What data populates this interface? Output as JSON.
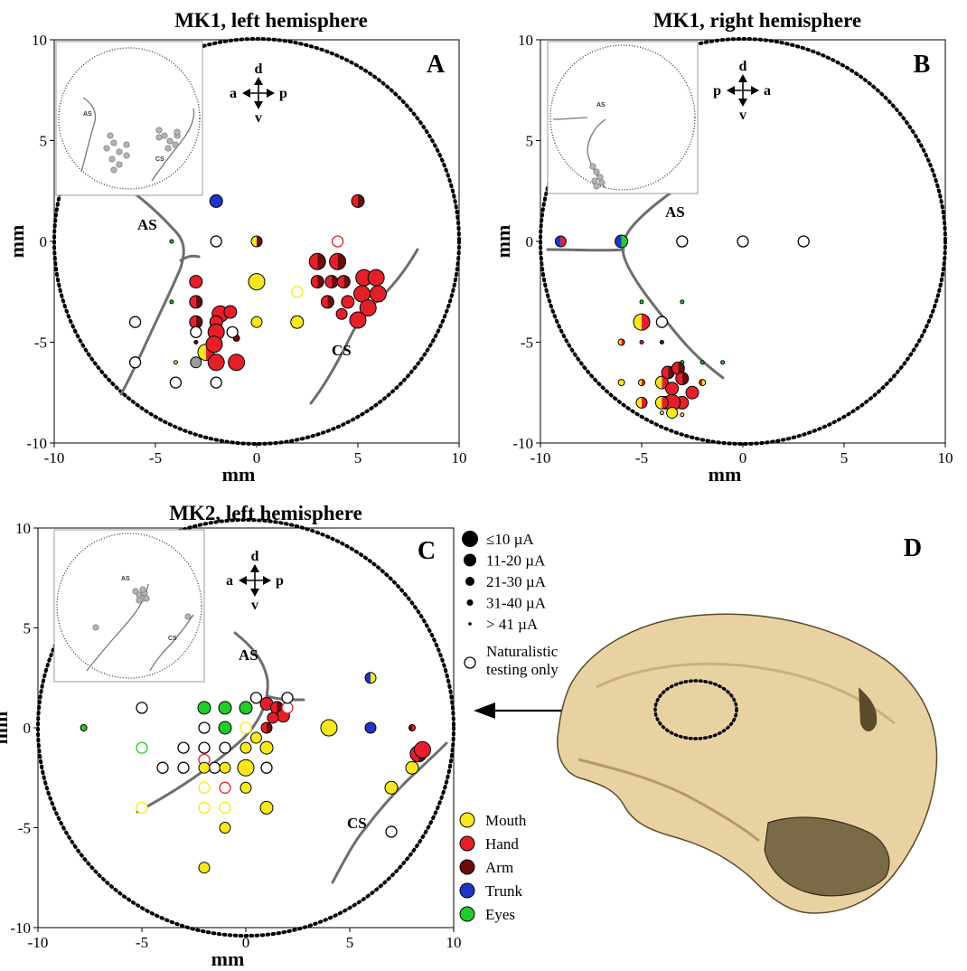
{
  "colors": {
    "mouth": "#f7e81c",
    "hand": "#e3202a",
    "arm": "#6b0d0d",
    "trunk": "#1f35c8",
    "eyes": "#22cc2a",
    "inset_dot": "#b4b4b4",
    "sulcus": "#6e6e6e",
    "skull": "#e9d2a2"
  },
  "panel_d": {
    "letter": "D"
  },
  "legend": {
    "sizes": [
      {
        "label": "≤10 µA",
        "radius": 9
      },
      {
        "label": "11-20 µA",
        "radius": 7
      },
      {
        "label": "21-30 µA",
        "radius": 5
      },
      {
        "label": "31-40 µA",
        "radius": 3.5
      },
      {
        "label": "> 41 µA",
        "radius": 1.8
      }
    ],
    "naturalistic": [
      "Naturalistic",
      "testing only"
    ],
    "categories": [
      {
        "label": "Mouth",
        "color": "#f7e81c"
      },
      {
        "label": "Hand",
        "color": "#e3202a"
      },
      {
        "label": "Arm",
        "color": "#6b0d0d"
      },
      {
        "label": "Trunk",
        "color": "#1f35c8"
      },
      {
        "label": "Eyes",
        "color": "#22cc2a"
      }
    ]
  },
  "chart_data": [
    {
      "type": "scatter",
      "panel": "A",
      "title": "MK1, left hemisphere",
      "xlabel": "mm",
      "ylabel": "mm",
      "xlim": [
        -10,
        10
      ],
      "ylim": [
        -10,
        10
      ],
      "xticks": [
        -10,
        -5,
        0,
        5,
        10
      ],
      "yticks": [
        -10,
        -5,
        0,
        5,
        10
      ],
      "orientation": {
        "up": "d",
        "down": "v",
        "left": "a",
        "right": "p"
      },
      "sulcus_labels": [
        "AS",
        "CS"
      ],
      "inset_labels": [
        "AS",
        "CS"
      ],
      "points": [
        {
          "x": -2,
          "y": 2,
          "c": [
            "trunk"
          ],
          "s": 2
        },
        {
          "x": -4.2,
          "y": 0,
          "c": [
            "eyes"
          ],
          "s": 5
        },
        {
          "x": -2,
          "y": 0,
          "c": [
            "none"
          ],
          "s": 3
        },
        {
          "x": 0,
          "y": 0,
          "c": [
            "mouth",
            "arm"
          ],
          "s": 3
        },
        {
          "x": 5,
          "y": 2,
          "c": [
            "hand",
            "arm"
          ],
          "s": 2
        },
        {
          "x": 4,
          "y": 0,
          "c": [
            "none_hand"
          ],
          "s": 3
        },
        {
          "x": 3,
          "y": -1,
          "c": [
            "hand",
            "arm"
          ],
          "s": 1
        },
        {
          "x": 4,
          "y": -1,
          "c": [
            "hand",
            "arm"
          ],
          "s": 1
        },
        {
          "x": 3,
          "y": -2,
          "c": [
            "hand",
            "arm"
          ],
          "s": 2
        },
        {
          "x": 3.7,
          "y": -2,
          "c": [
            "hand",
            "arm"
          ],
          "s": 2
        },
        {
          "x": 4.3,
          "y": -2,
          "c": [
            "hand",
            "arm"
          ],
          "s": 2
        },
        {
          "x": 3.5,
          "y": -3,
          "c": [
            "hand",
            "arm"
          ],
          "s": 2
        },
        {
          "x": 4.5,
          "y": -3,
          "c": [
            "hand"
          ],
          "s": 2
        },
        {
          "x": 5.3,
          "y": -1.8,
          "c": [
            "hand"
          ],
          "s": 1
        },
        {
          "x": 5.9,
          "y": -1.8,
          "c": [
            "hand"
          ],
          "s": 1
        },
        {
          "x": 5.2,
          "y": -2.6,
          "c": [
            "hand"
          ],
          "s": 1
        },
        {
          "x": 6,
          "y": -2.6,
          "c": [
            "hand"
          ],
          "s": 1
        },
        {
          "x": 5.5,
          "y": -3.3,
          "c": [
            "hand"
          ],
          "s": 1
        },
        {
          "x": 4.2,
          "y": -3.6,
          "c": [
            "hand"
          ],
          "s": 3
        },
        {
          "x": 5,
          "y": -3.9,
          "c": [
            "hand"
          ],
          "s": 1
        },
        {
          "x": 0,
          "y": -2,
          "c": [
            "mouth"
          ],
          "s": 1
        },
        {
          "x": 2,
          "y": -2.5,
          "c": [
            "none_mouth"
          ],
          "s": 3
        },
        {
          "x": 2,
          "y": -4,
          "c": [
            "mouth"
          ],
          "s": 2
        },
        {
          "x": 0,
          "y": -4,
          "c": [
            "mouth"
          ],
          "s": 3
        },
        {
          "x": -3,
          "y": -2,
          "c": [
            "hand"
          ],
          "s": 2
        },
        {
          "x": -3,
          "y": -3,
          "c": [
            "hand",
            "arm"
          ],
          "s": 2
        },
        {
          "x": -4.2,
          "y": -3,
          "c": [
            "eyes"
          ],
          "s": 5
        },
        {
          "x": -3,
          "y": -4,
          "c": [
            "hand",
            "arm"
          ],
          "s": 2
        },
        {
          "x": -1.8,
          "y": -3.6,
          "c": [
            "hand"
          ],
          "s": 1
        },
        {
          "x": -1.3,
          "y": -3.5,
          "c": [
            "hand"
          ],
          "s": 2
        },
        {
          "x": -2,
          "y": -4,
          "c": [
            "hand"
          ],
          "s": 2
        },
        {
          "x": -2,
          "y": -4.5,
          "c": [
            "hand"
          ],
          "s": 1
        },
        {
          "x": -1,
          "y": -4.8,
          "c": [
            "arm"
          ],
          "s": 4
        },
        {
          "x": -1.2,
          "y": -4.5,
          "c": [
            "none"
          ],
          "s": 3
        },
        {
          "x": -3,
          "y": -4.5,
          "c": [
            "none"
          ],
          "s": 3
        },
        {
          "x": -2.5,
          "y": -5.5,
          "c": [
            "mouth",
            "hand"
          ],
          "s": 1
        },
        {
          "x": -2.1,
          "y": -5.1,
          "c": [
            "hand"
          ],
          "s": 1
        },
        {
          "x": -2,
          "y": -6,
          "c": [
            "hand"
          ],
          "s": 1
        },
        {
          "x": -1,
          "y": -6,
          "c": [
            "hand"
          ],
          "s": 1
        },
        {
          "x": -3,
          "y": -6,
          "c": [
            "gray"
          ],
          "s": 3
        },
        {
          "x": -3,
          "y": -5,
          "c": [
            "arm"
          ],
          "s": 5
        },
        {
          "x": -4,
          "y": -6,
          "c": [
            "mouth"
          ],
          "s": 5
        },
        {
          "x": -6,
          "y": -4,
          "c": [
            "none"
          ],
          "s": 3
        },
        {
          "x": -6,
          "y": -6,
          "c": [
            "none"
          ],
          "s": 3
        },
        {
          "x": -4,
          "y": -7,
          "c": [
            "none"
          ],
          "s": 3
        },
        {
          "x": -2,
          "y": -7,
          "c": [
            "none"
          ],
          "s": 3
        }
      ]
    },
    {
      "type": "scatter",
      "panel": "B",
      "title": "MK1, right hemisphere",
      "xlabel": "mm",
      "ylabel": "mm",
      "xlim": [
        -10,
        10
      ],
      "ylim": [
        -10,
        10
      ],
      "xticks": [
        -10,
        -5,
        0,
        5,
        10
      ],
      "yticks": [
        -10,
        -5,
        0,
        5,
        10
      ],
      "orientation": {
        "up": "d",
        "down": "v",
        "left": "p",
        "right": "a"
      },
      "sulcus_labels": [
        "AS"
      ],
      "inset_labels": [
        "AS"
      ],
      "points": [
        {
          "x": -9,
          "y": 0,
          "c": [
            "trunk",
            "hand"
          ],
          "s": 3
        },
        {
          "x": -6,
          "y": 0,
          "c": [
            "trunk",
            "eyes"
          ],
          "s": 2
        },
        {
          "x": -3,
          "y": 0,
          "c": [
            "none"
          ],
          "s": 3
        },
        {
          "x": 0,
          "y": 0,
          "c": [
            "none"
          ],
          "s": 3
        },
        {
          "x": 3,
          "y": 0,
          "c": [
            "none"
          ],
          "s": 3
        },
        {
          "x": -5,
          "y": -3,
          "c": [
            "eyes"
          ],
          "s": 5
        },
        {
          "x": -3,
          "y": -3,
          "c": [
            "eyes"
          ],
          "s": 5
        },
        {
          "x": -5,
          "y": -4,
          "c": [
            "mouth",
            "hand"
          ],
          "s": 1
        },
        {
          "x": -4,
          "y": -4,
          "c": [
            "none"
          ],
          "s": 3
        },
        {
          "x": -6,
          "y": -5,
          "c": [
            "mouth",
            "hand"
          ],
          "s": 4
        },
        {
          "x": -5,
          "y": -5,
          "c": [
            "hand"
          ],
          "s": 5
        },
        {
          "x": -4,
          "y": -5,
          "c": [
            "arm"
          ],
          "s": 5
        },
        {
          "x": -3,
          "y": -6,
          "c": [
            "eyes"
          ],
          "s": 5
        },
        {
          "x": -2,
          "y": -6,
          "c": [
            "eyes"
          ],
          "s": 5
        },
        {
          "x": -1,
          "y": -6,
          "c": [
            "eyes"
          ],
          "s": 5
        },
        {
          "x": -6,
          "y": -7,
          "c": [
            "mouth"
          ],
          "s": 4
        },
        {
          "x": -5,
          "y": -7,
          "c": [
            "mouth",
            "hand"
          ],
          "s": 4
        },
        {
          "x": -4,
          "y": -7,
          "c": [
            "mouth",
            "hand"
          ],
          "s": 2
        },
        {
          "x": -3.7,
          "y": -6.5,
          "c": [
            "hand",
            "arm"
          ],
          "s": 2
        },
        {
          "x": -3.2,
          "y": -6.3,
          "c": [
            "hand",
            "arm"
          ],
          "s": 2
        },
        {
          "x": -3,
          "y": -6.8,
          "c": [
            "hand",
            "arm"
          ],
          "s": 2
        },
        {
          "x": -3.5,
          "y": -7.3,
          "c": [
            "hand"
          ],
          "s": 2
        },
        {
          "x": -2.5,
          "y": -7.5,
          "c": [
            "hand"
          ],
          "s": 2
        },
        {
          "x": -3,
          "y": -8,
          "c": [
            "hand"
          ],
          "s": 2
        },
        {
          "x": -3.8,
          "y": -8,
          "c": [
            "hand",
            "arm"
          ],
          "s": 2
        },
        {
          "x": -3.5,
          "y": -8,
          "c": [
            "hand"
          ],
          "s": 1
        },
        {
          "x": -4,
          "y": -8,
          "c": [
            "mouth",
            "hand"
          ],
          "s": 2
        },
        {
          "x": -5,
          "y": -8,
          "c": [
            "mouth",
            "hand"
          ],
          "s": 3
        },
        {
          "x": -2,
          "y": -7,
          "c": [
            "hand",
            "mouth"
          ],
          "s": 4
        },
        {
          "x": -3.5,
          "y": -8.5,
          "c": [
            "mouth"
          ],
          "s": 3
        },
        {
          "x": -4,
          "y": -8.5,
          "c": [
            "mouth"
          ],
          "s": 5
        },
        {
          "x": -3,
          "y": -8.6,
          "c": [
            "mouth"
          ],
          "s": 5
        }
      ]
    },
    {
      "type": "scatter",
      "panel": "C",
      "title": "MK2, left hemisphere",
      "xlabel": "mm",
      "ylabel": "mm",
      "xlim": [
        -10,
        10
      ],
      "ylim": [
        -10,
        10
      ],
      "xticks": [
        -10,
        -5,
        0,
        5,
        10
      ],
      "yticks": [
        -10,
        -5,
        0,
        5,
        10
      ],
      "orientation": {
        "up": "d",
        "down": "v",
        "left": "a",
        "right": "p"
      },
      "sulcus_labels": [
        "AS",
        "CS"
      ],
      "inset_labels": [
        "AS",
        "CS"
      ],
      "points": [
        {
          "x": -7.8,
          "y": 0,
          "c": [
            "eyes"
          ],
          "s": 4
        },
        {
          "x": -5,
          "y": -1,
          "c": [
            "none_eyes"
          ],
          "s": 3
        },
        {
          "x": -5,
          "y": 1,
          "c": [
            "none"
          ],
          "s": 3
        },
        {
          "x": -3,
          "y": -1,
          "c": [
            "none"
          ],
          "s": 3
        },
        {
          "x": -4,
          "y": -2,
          "c": [
            "none"
          ],
          "s": 3
        },
        {
          "x": -3,
          "y": -2,
          "c": [
            "none"
          ],
          "s": 3
        },
        {
          "x": -2,
          "y": 1,
          "c": [
            "eyes"
          ],
          "s": 2
        },
        {
          "x": -1,
          "y": 1,
          "c": [
            "eyes"
          ],
          "s": 2
        },
        {
          "x": 0,
          "y": 1,
          "c": [
            "eyes"
          ],
          "s": 2
        },
        {
          "x": -2,
          "y": 0,
          "c": [
            "none"
          ],
          "s": 3
        },
        {
          "x": -1,
          "y": 0,
          "c": [
            "eyes"
          ],
          "s": 2
        },
        {
          "x": 0,
          "y": 0,
          "c": [
            "none_mouth"
          ],
          "s": 3
        },
        {
          "x": 1,
          "y": 0,
          "c": [
            "hand",
            "arm"
          ],
          "s": 3
        },
        {
          "x": -2,
          "y": -1,
          "c": [
            "none"
          ],
          "s": 3
        },
        {
          "x": -1,
          "y": -1,
          "c": [
            "none"
          ],
          "s": 3
        },
        {
          "x": 0,
          "y": -1,
          "c": [
            "mouth"
          ],
          "s": 3
        },
        {
          "x": 0.5,
          "y": -0.5,
          "c": [
            "mouth"
          ],
          "s": 3
        },
        {
          "x": 1,
          "y": -1,
          "c": [
            "mouth"
          ],
          "s": 2
        },
        {
          "x": -2,
          "y": -1.6,
          "c": [
            "none_hand"
          ],
          "s": 3
        },
        {
          "x": -1.5,
          "y": -2,
          "c": [
            "none"
          ],
          "s": 3
        },
        {
          "x": -2,
          "y": -2,
          "c": [
            "mouth"
          ],
          "s": 3
        },
        {
          "x": -1,
          "y": -2,
          "c": [
            "mouth"
          ],
          "s": 3
        },
        {
          "x": 0,
          "y": -2,
          "c": [
            "mouth"
          ],
          "s": 1
        },
        {
          "x": 1,
          "y": -2,
          "c": [
            "none"
          ],
          "s": 3
        },
        {
          "x": -2,
          "y": -3,
          "c": [
            "none_mouth"
          ],
          "s": 3
        },
        {
          "x": -1,
          "y": -3,
          "c": [
            "none_hand"
          ],
          "s": 3
        },
        {
          "x": 0,
          "y": -3,
          "c": [
            "mouth"
          ],
          "s": 3
        },
        {
          "x": -2,
          "y": -4,
          "c": [
            "none_mouth"
          ],
          "s": 3
        },
        {
          "x": -1,
          "y": -4,
          "c": [
            "none_mouth"
          ],
          "s": 3
        },
        {
          "x": 1,
          "y": -4,
          "c": [
            "mouth"
          ],
          "s": 2
        },
        {
          "x": -1,
          "y": -5,
          "c": [
            "mouth"
          ],
          "s": 3
        },
        {
          "x": -5,
          "y": -4,
          "c": [
            "none_mouth"
          ],
          "s": 3
        },
        {
          "x": -2,
          "y": -7,
          "c": [
            "mouth"
          ],
          "s": 3
        },
        {
          "x": 4,
          "y": 0,
          "c": [
            "mouth"
          ],
          "s": 1
        },
        {
          "x": 0.5,
          "y": 1.5,
          "c": [
            "none"
          ],
          "s": 3
        },
        {
          "x": 1,
          "y": 1.2,
          "c": [
            "hand"
          ],
          "s": 2
        },
        {
          "x": 1.5,
          "y": 1,
          "c": [
            "hand",
            "arm"
          ],
          "s": 2
        },
        {
          "x": 1.8,
          "y": 0.6,
          "c": [
            "hand"
          ],
          "s": 2
        },
        {
          "x": 2,
          "y": 1,
          "c": [
            "none_hand"
          ],
          "s": 3
        },
        {
          "x": 1.3,
          "y": 0.5,
          "c": [
            "hand"
          ],
          "s": 3
        },
        {
          "x": 2,
          "y": 1.5,
          "c": [
            "none"
          ],
          "s": 3
        },
        {
          "x": 6,
          "y": 2.5,
          "c": [
            "trunk",
            "mouth"
          ],
          "s": 3
        },
        {
          "x": 6,
          "y": 0,
          "c": [
            "trunk"
          ],
          "s": 3
        },
        {
          "x": 8,
          "y": 0,
          "c": [
            "arm",
            "hand"
          ],
          "s": 4
        },
        {
          "x": 8.3,
          "y": -1.3,
          "c": [
            "hand",
            "arm"
          ],
          "s": 1
        },
        {
          "x": 8.5,
          "y": -1.1,
          "c": [
            "hand"
          ],
          "s": 1
        },
        {
          "x": 8,
          "y": -2,
          "c": [
            "mouth"
          ],
          "s": 2
        },
        {
          "x": 7,
          "y": -3,
          "c": [
            "mouth"
          ],
          "s": 2
        },
        {
          "x": 7,
          "y": -5.2,
          "c": [
            "none"
          ],
          "s": 5
        }
      ]
    }
  ]
}
